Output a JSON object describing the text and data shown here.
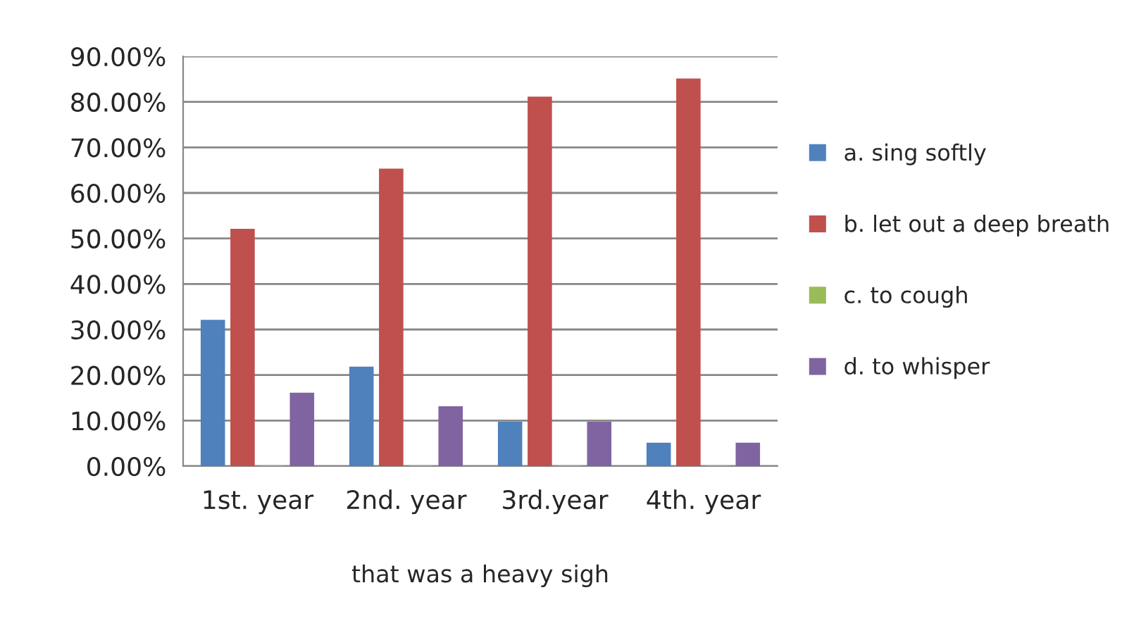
{
  "chart_data": {
    "type": "bar",
    "xlabel": "that was a heavy sigh",
    "categories": [
      "1st. year",
      "2nd. year",
      "3rd.year",
      "4th. year"
    ],
    "series": [
      {
        "name": "a. sing softly",
        "color": "#4f81bd",
        "values": [
          32,
          21.7,
          9.6,
          5
        ]
      },
      {
        "name": "b. let out a deep breath",
        "color": "#c0504d",
        "values": [
          52,
          65.2,
          81,
          85
        ]
      },
      {
        "name": "c. to cough",
        "color": "#9bbb59",
        "values": [
          0,
          0,
          0,
          0
        ]
      },
      {
        "name": "d. to whisper",
        "color": "#8064a2",
        "values": [
          16,
          13,
          9.6,
          5
        ]
      }
    ],
    "ylim": [
      0,
      90
    ],
    "yticks": [
      {
        "value": 0,
        "label": "0.00%"
      },
      {
        "value": 10,
        "label": "10.00%"
      },
      {
        "value": 20,
        "label": "20.00%"
      },
      {
        "value": 30,
        "label": "30.00%"
      },
      {
        "value": 40,
        "label": "40.00%"
      },
      {
        "value": 50,
        "label": "50.00%"
      },
      {
        "value": 60,
        "label": "60.00%"
      },
      {
        "value": 70,
        "label": "70.00%"
      },
      {
        "value": 80,
        "label": "80.00%"
      },
      {
        "value": 90,
        "label": "90.00%"
      }
    ],
    "grid": "y",
    "legend": "right"
  }
}
